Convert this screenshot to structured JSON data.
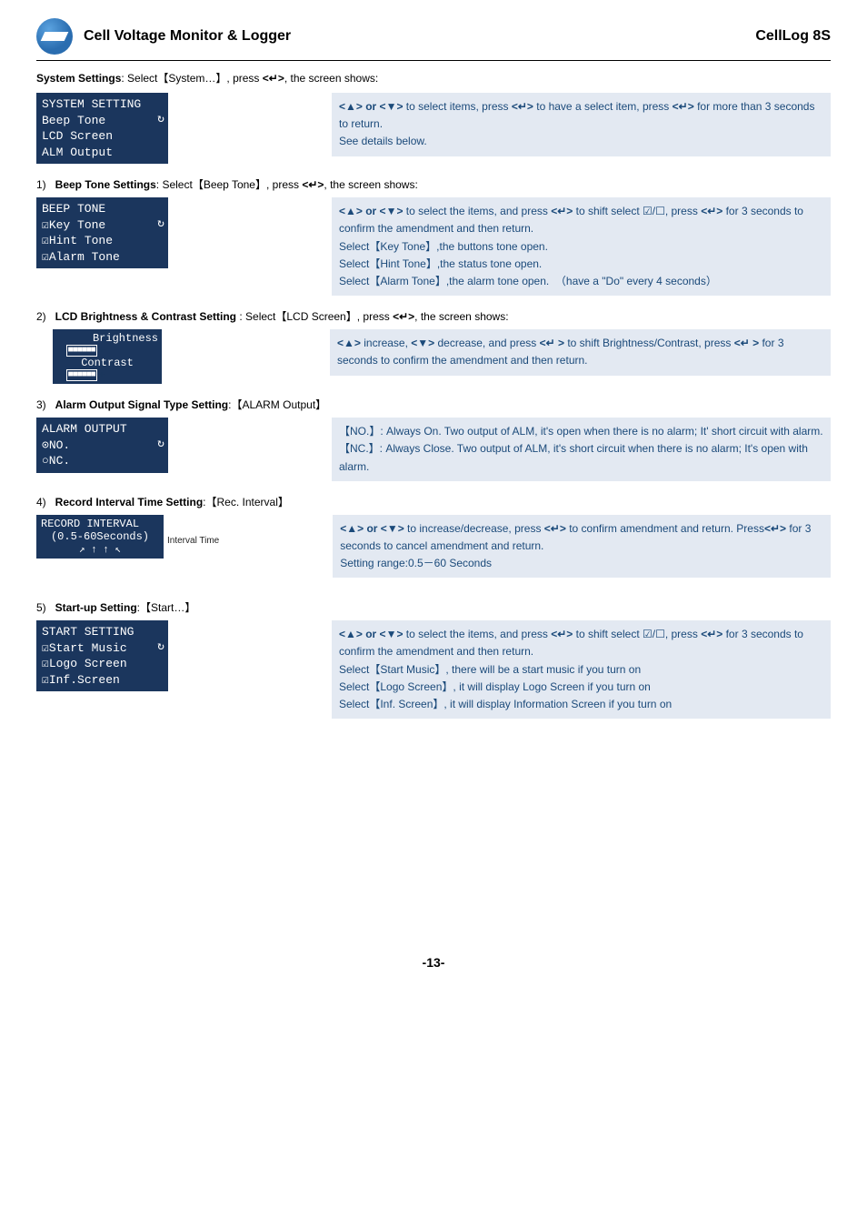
{
  "header": {
    "left": "Cell Voltage Monitor & Logger",
    "right": "CellLog 8S"
  },
  "intro_html": "<b>System Settings</b>: Select【System…】, press <b>&lt;↵&gt;</b>, the screen shows:",
  "sys_lcd": {
    "title": "SYSTEM SETTING",
    "l1": "Beep Tone",
    "l2": "LCD Screen",
    "l3": "ALM Output"
  },
  "sys_desc_html": "<b>&lt;▲&gt; or &lt;▼&gt;</b> to select items, press <b>&lt;↵&gt;</b> to have a select item, press <b>&lt;↵&gt;</b> for more than 3 seconds to return.<br>See details below.",
  "item1_title_html": "1)&nbsp;&nbsp;&nbsp;<b>Beep Tone Settings</b>: Select【Beep Tone】, press <b>&lt;↵&gt;</b>, the screen shows:",
  "beep_lcd": {
    "title": "BEEP TONE",
    "l1": "☑Key Tone",
    "l2": "☑Hint Tone",
    "l3": "☑Alarm Tone"
  },
  "beep_desc_html": "<b>&lt;▲&gt; or &lt;▼&gt;</b> to select the items, and press <b>&lt;↵&gt;</b> to shift select ☑/☐, press <b>&lt;↵&gt;</b> for 3 seconds to confirm the amendment and then return.<br>Select【Key Tone】,the buttons tone open.<br>Select【Hint Tone】,the status tone open.<br>Select【Alarm Tone】,the alarm tone open.&nbsp;&nbsp;（have a &quot;Do&quot; every 4 seconds）",
  "item2_title_html": "2)&nbsp;&nbsp;&nbsp;<b>LCD Brightness &amp; Contrast Setting</b> : Select【LCD Screen】, press <b>&lt;↵&gt;</b>, the screen shows:",
  "bright_lcd": {
    "l1": "Brightness",
    "l2": "Contrast",
    "bar": "■■■■■■"
  },
  "bright_desc_html": "<b>&lt;▲&gt;</b> increase, <b>&lt;▼&gt;</b> decrease, and press <b>&lt;↵ &gt;</b> to shift Brightness/Contrast, press <b>&lt;↵ &gt;</b> for 3 seconds to confirm the amendment and then return.",
  "item3_title_html": "3)&nbsp;&nbsp;&nbsp;<b>Alarm Output Signal Type Setting</b>:【ALARM Output】",
  "alarm_lcd": {
    "title": "ALARM OUTPUT",
    "l1": "⊙NO.",
    "l2": "○NC."
  },
  "alarm_desc_html": "【NO.】: Always On. Two output of ALM, it's open when there is no alarm; It' short circuit with alarm.<br>【NC.】: Always Close. Two output of ALM, it's short circuit when there is no alarm; It's open with alarm.",
  "item4_title_html": "4)&nbsp;&nbsp;&nbsp;<b>Record Interval Time Setting</b>:【Rec. Interval】",
  "record_lcd": {
    "title": "RECORD INTERVAL",
    "val": "(0.5-60Seconds)",
    "arrows": "↗ ↑ ↑ ↖",
    "label": "Interval Time"
  },
  "record_desc_html": "<b>&lt;▲&gt; or &lt;▼&gt;</b> to increase/decrease, press <b>&lt;↵&gt;</b> to confirm amendment and return. Press<b>&lt;↵&gt;</b> for 3 seconds to cancel amendment and return.<br>Setting range:0.5－60 Seconds",
  "item5_title_html": "5)&nbsp;&nbsp;&nbsp;<b>Start-up Setting</b>:【Start…】",
  "start_lcd": {
    "title": "START SETTING",
    "l1": "☑Start Music",
    "l2": "☑Logo Screen",
    "l3": "☑Inf.Screen"
  },
  "start_desc_html": "<b>&lt;▲&gt; or &lt;▼&gt;</b> to select the items, and press <b>&lt;↵&gt;</b> to shift select ☑/☐, press <b>&lt;↵&gt;</b> for 3 seconds to confirm the amendment and then return.<br>Select【Start Music】, there will be a start music if you turn on<br>Select【Logo Screen】, it will display Logo Screen if you turn on<br>Select【Inf. Screen】, it will display Information Screen if you turn on",
  "footer": "-13-"
}
